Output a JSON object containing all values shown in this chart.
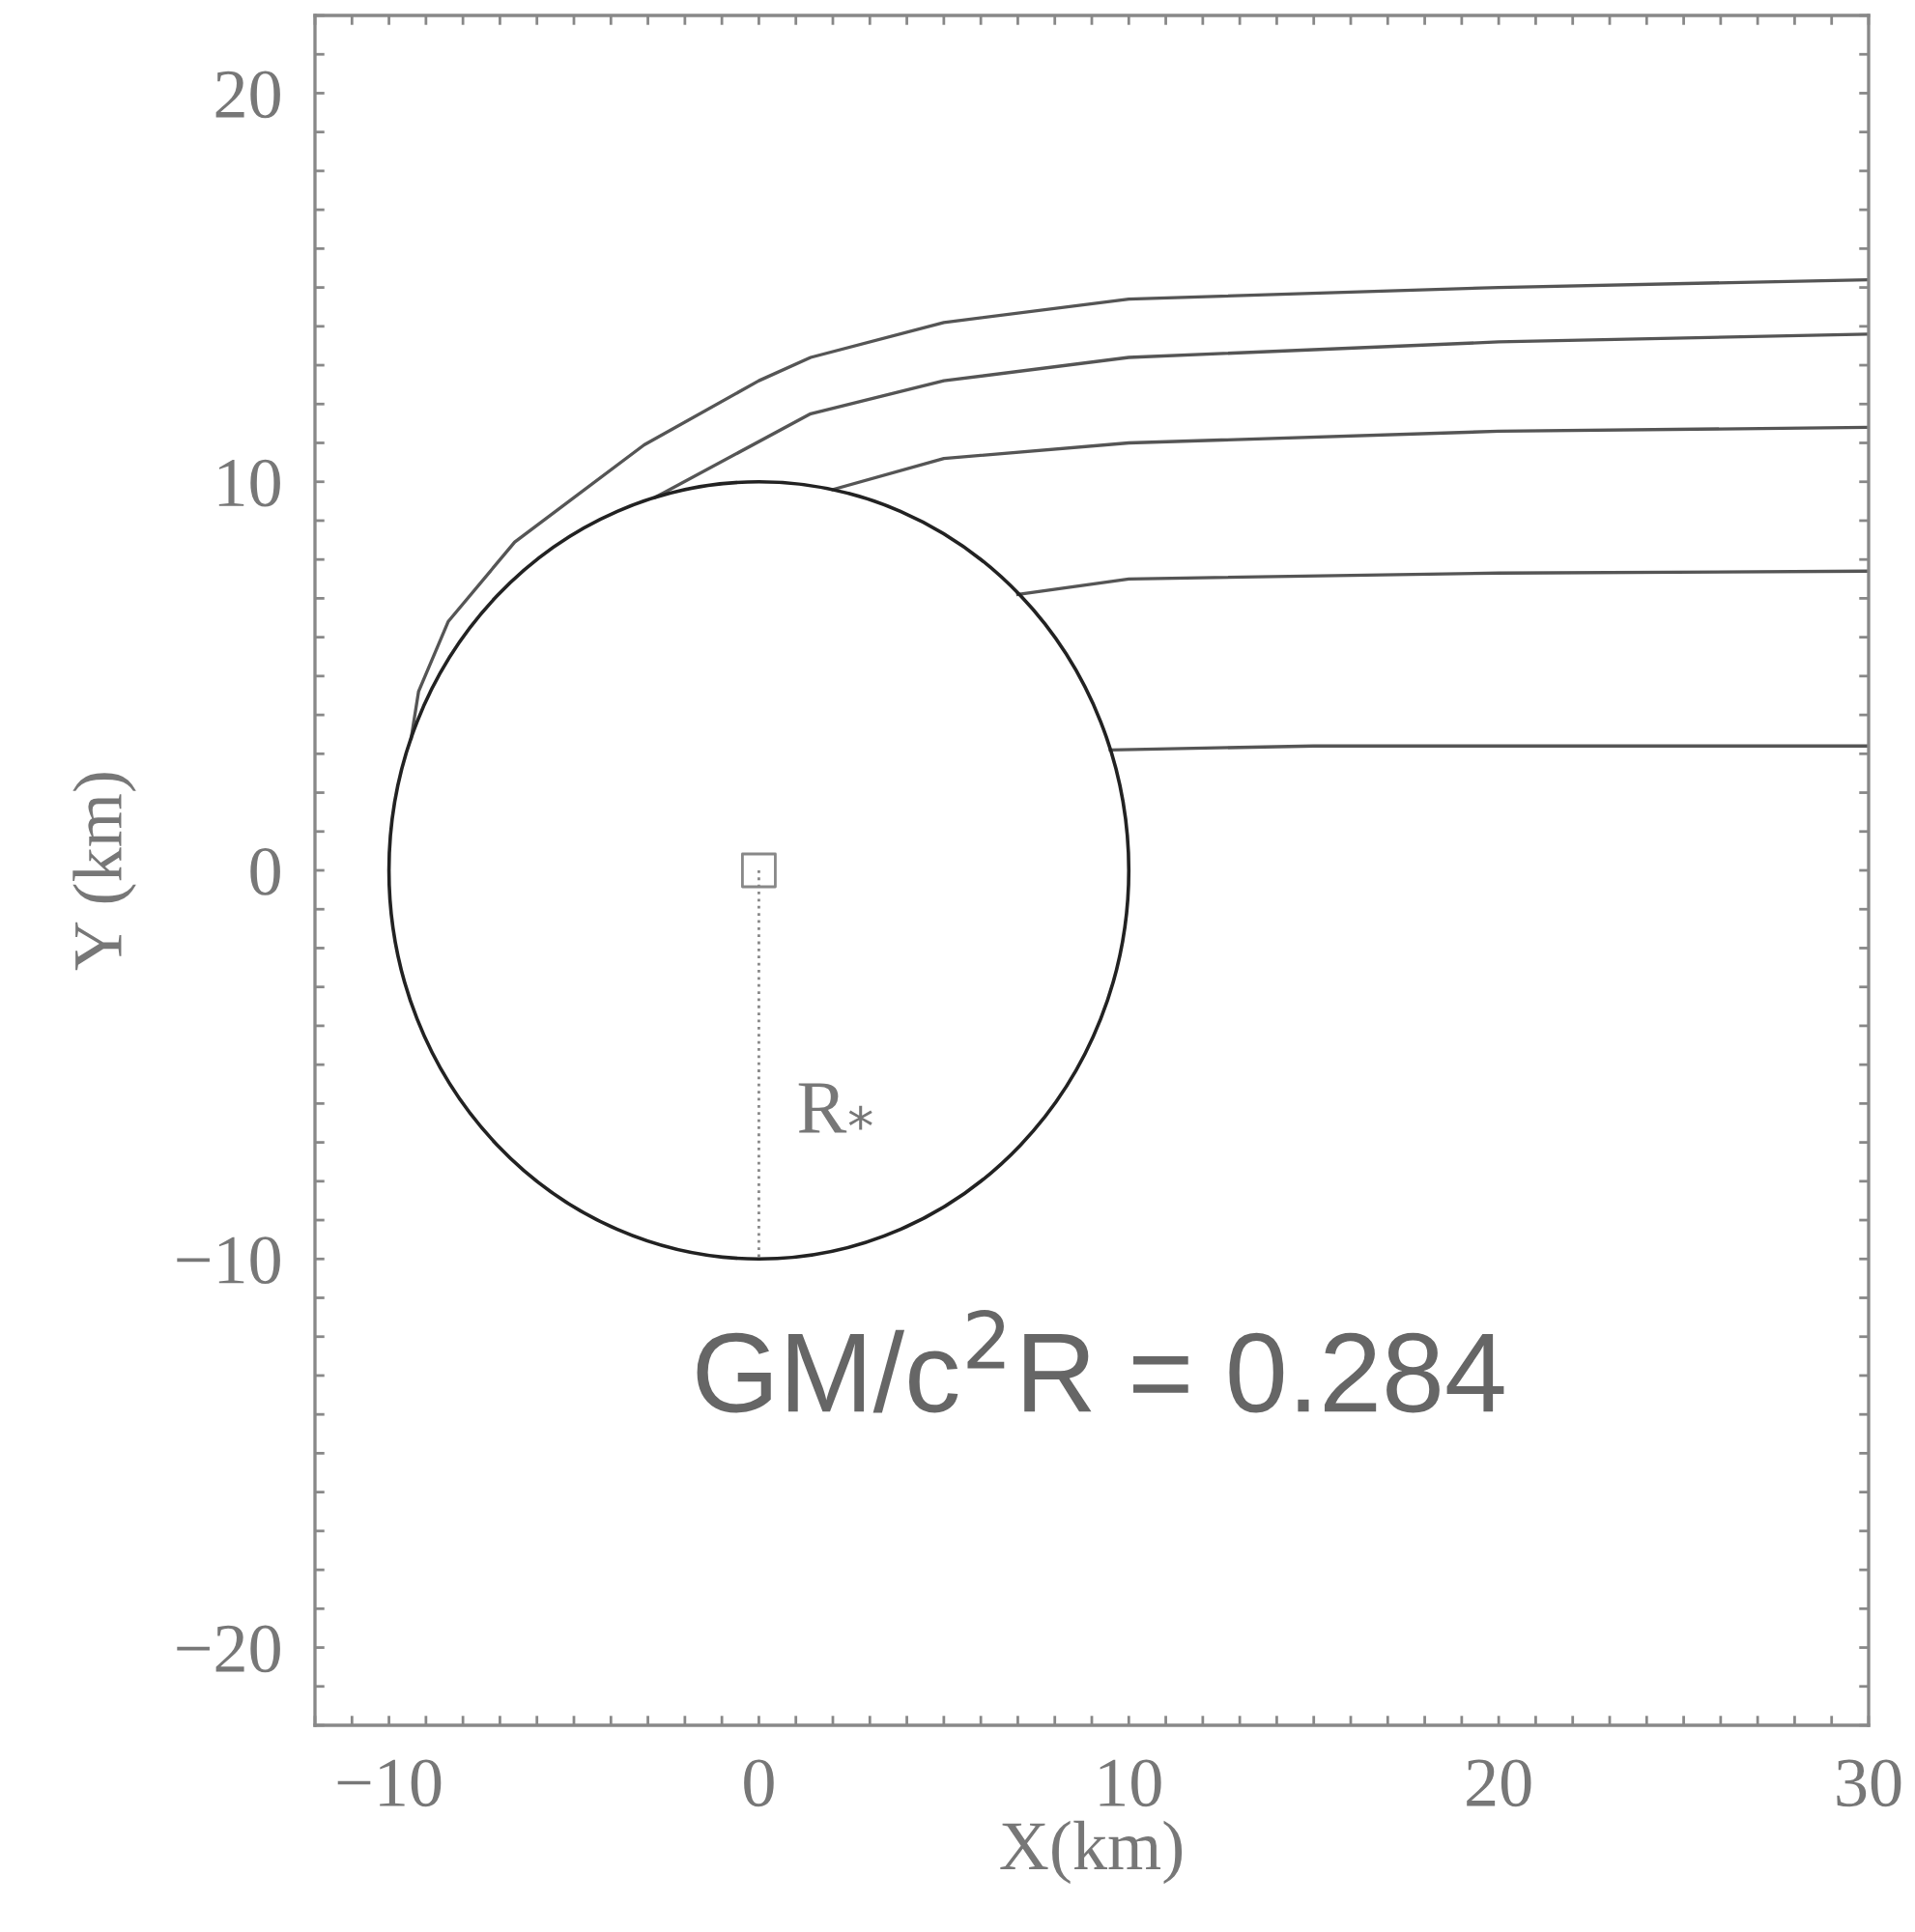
{
  "chart_data": {
    "type": "line",
    "xlabel": "X(km)",
    "ylabel": "Y (km)",
    "xlim": [
      -12,
      30
    ],
    "ylim": [
      -22,
      22
    ],
    "xticks": [
      {
        "value": -12,
        "label": null
      },
      {
        "value": -11,
        "label": null
      },
      {
        "value": -10,
        "label": "−10"
      },
      {
        "value": -9,
        "label": null
      },
      {
        "value": -8,
        "label": null
      },
      {
        "value": -7,
        "label": null
      },
      {
        "value": -6,
        "label": null
      },
      {
        "value": -5,
        "label": null
      },
      {
        "value": -4,
        "label": null
      },
      {
        "value": -3,
        "label": null
      },
      {
        "value": -2,
        "label": null
      },
      {
        "value": -1,
        "label": null
      },
      {
        "value": 0,
        "label": "0"
      },
      {
        "value": 1,
        "label": null
      },
      {
        "value": 2,
        "label": null
      },
      {
        "value": 3,
        "label": null
      },
      {
        "value": 4,
        "label": null
      },
      {
        "value": 5,
        "label": null
      },
      {
        "value": 6,
        "label": null
      },
      {
        "value": 7,
        "label": null
      },
      {
        "value": 8,
        "label": null
      },
      {
        "value": 9,
        "label": null
      },
      {
        "value": 10,
        "label": "10"
      },
      {
        "value": 11,
        "label": null
      },
      {
        "value": 12,
        "label": null
      },
      {
        "value": 13,
        "label": null
      },
      {
        "value": 14,
        "label": null
      },
      {
        "value": 15,
        "label": null
      },
      {
        "value": 16,
        "label": null
      },
      {
        "value": 17,
        "label": null
      },
      {
        "value": 18,
        "label": null
      },
      {
        "value": 19,
        "label": null
      },
      {
        "value": 20,
        "label": "20"
      },
      {
        "value": 21,
        "label": null
      },
      {
        "value": 22,
        "label": null
      },
      {
        "value": 23,
        "label": null
      },
      {
        "value": 24,
        "label": null
      },
      {
        "value": 25,
        "label": null
      },
      {
        "value": 26,
        "label": null
      },
      {
        "value": 27,
        "label": null
      },
      {
        "value": 28,
        "label": null
      },
      {
        "value": 29,
        "label": null
      },
      {
        "value": 30,
        "label": "30"
      }
    ],
    "yticks": [
      {
        "value": -22,
        "label": null
      },
      {
        "value": -21,
        "label": null
      },
      {
        "value": -20,
        "label": "−20"
      },
      {
        "value": -19,
        "label": null
      },
      {
        "value": -18,
        "label": null
      },
      {
        "value": -17,
        "label": null
      },
      {
        "value": -16,
        "label": null
      },
      {
        "value": -15,
        "label": null
      },
      {
        "value": -14,
        "label": null
      },
      {
        "value": -13,
        "label": null
      },
      {
        "value": -12,
        "label": null
      },
      {
        "value": -11,
        "label": null
      },
      {
        "value": -10,
        "label": "−10"
      },
      {
        "value": -9,
        "label": null
      },
      {
        "value": -8,
        "label": null
      },
      {
        "value": -7,
        "label": null
      },
      {
        "value": -6,
        "label": null
      },
      {
        "value": -5,
        "label": null
      },
      {
        "value": -4,
        "label": null
      },
      {
        "value": -3,
        "label": null
      },
      {
        "value": -2,
        "label": null
      },
      {
        "value": -1,
        "label": null
      },
      {
        "value": 0,
        "label": "0"
      },
      {
        "value": 1,
        "label": null
      },
      {
        "value": 2,
        "label": null
      },
      {
        "value": 3,
        "label": null
      },
      {
        "value": 4,
        "label": null
      },
      {
        "value": 5,
        "label": null
      },
      {
        "value": 6,
        "label": null
      },
      {
        "value": 7,
        "label": null
      },
      {
        "value": 8,
        "label": null
      },
      {
        "value": 9,
        "label": null
      },
      {
        "value": 10,
        "label": "10"
      },
      {
        "value": 11,
        "label": null
      },
      {
        "value": 12,
        "label": null
      },
      {
        "value": 13,
        "label": null
      },
      {
        "value": 14,
        "label": null
      },
      {
        "value": 15,
        "label": null
      },
      {
        "value": 16,
        "label": null
      },
      {
        "value": 17,
        "label": null
      },
      {
        "value": 18,
        "label": null
      },
      {
        "value": 19,
        "label": null
      },
      {
        "value": 20,
        "label": "20"
      },
      {
        "value": 21,
        "label": null
      },
      {
        "value": 22,
        "label": null
      }
    ],
    "grid": false,
    "legend": false,
    "series": [
      {
        "color": "#555555",
        "x": [
          -9.4,
          -9.2,
          -8.4,
          -6.6,
          -3.1,
          0,
          1.4,
          5,
          10,
          20,
          30
        ],
        "values": [
          3.4,
          4.6,
          6.4,
          8.45,
          10.95,
          12.6,
          13.2,
          14.1,
          14.7,
          15.0,
          15.2
        ]
      },
      {
        "color": "#555555",
        "x": [
          -2.8,
          1.4,
          5,
          10,
          20,
          30
        ],
        "values": [
          9.6,
          11.75,
          12.6,
          13.2,
          13.6,
          13.8
        ]
      },
      {
        "color": "#555555",
        "x": [
          2,
          5,
          10,
          20,
          30
        ],
        "values": [
          9.8,
          10.6,
          11.0,
          11.3,
          11.4
        ]
      },
      {
        "color": "#555555",
        "x": [
          7,
          10,
          20,
          30
        ],
        "values": [
          7.1,
          7.5,
          7.65,
          7.7
        ]
      },
      {
        "color": "#555555",
        "x": [
          9.5,
          15,
          30
        ],
        "values": [
          3.1,
          3.2,
          3.2
        ]
      },
      {
        "color": "#888888",
        "line_style": "dotted",
        "x": [
          0,
          0
        ],
        "values": [
          0,
          -10
        ]
      },
      {
        "type": "scatter",
        "color": "#888888",
        "marker": "square",
        "x": [
          0
        ],
        "values": [
          0
        ]
      }
    ],
    "annotations": [
      "R$_{*}$",
      "GM/c$^{2}$R = 0.284"
    ]
  }
}
